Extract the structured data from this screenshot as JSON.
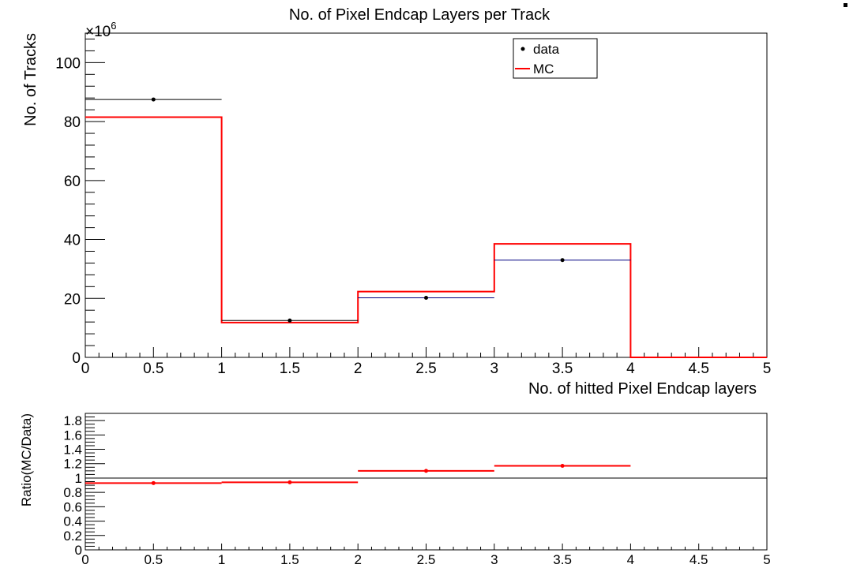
{
  "chart_data": [
    {
      "type": "histogram",
      "title": "No. of Pixel Endcap Layers per Track",
      "xlabel": "No. of hitted Pixel Endcap layers",
      "ylabel": "No. of Tracks",
      "y_multiplier": "×10",
      "y_multiplier_exp": "6",
      "xlim": [
        0,
        5
      ],
      "ylim": [
        0,
        110
      ],
      "x_ticks": [
        "0",
        "0.5",
        "1",
        "1.5",
        "2",
        "2.5",
        "3",
        "3.5",
        "4",
        "4.5",
        "5"
      ],
      "y_ticks": [
        "0",
        "20",
        "40",
        "60",
        "80",
        "100"
      ],
      "bin_edges": [
        0,
        1,
        2,
        3,
        4,
        5
      ],
      "legend": {
        "position": "top-right",
        "data_label": "data",
        "mc_label": "MC"
      },
      "series": [
        {
          "name": "data",
          "style": "points",
          "color": "#000000",
          "x": [
            0.5,
            1.5,
            2.5,
            3.5
          ],
          "values": [
            87.5,
            12.5,
            20.2,
            33.0
          ],
          "bar_colors": [
            "#000000",
            "#000000",
            "#000080",
            "#000080"
          ]
        },
        {
          "name": "MC",
          "style": "step",
          "color": "#ff0000",
          "values": [
            81.5,
            11.8,
            22.3,
            38.5,
            0
          ]
        }
      ]
    },
    {
      "type": "scatter",
      "ylabel": "Ratio(MC/Data)",
      "xlim": [
        0,
        5
      ],
      "ylim": [
        0,
        1.9
      ],
      "x_ticks": [
        "0",
        "0.5",
        "1",
        "1.5",
        "2",
        "2.5",
        "3",
        "3.5",
        "4",
        "4.5",
        "5"
      ],
      "y_ticks": [
        "0",
        "0.2",
        "0.4",
        "0.6",
        "0.8",
        "1",
        "1.2",
        "1.4",
        "1.6",
        "1.8"
      ],
      "reference_line": 1,
      "series": [
        {
          "name": "ratio",
          "color": "#ff0000",
          "x": [
            0.5,
            1.5,
            2.5,
            3.5
          ],
          "values": [
            0.93,
            0.94,
            1.1,
            1.17
          ]
        }
      ]
    }
  ]
}
